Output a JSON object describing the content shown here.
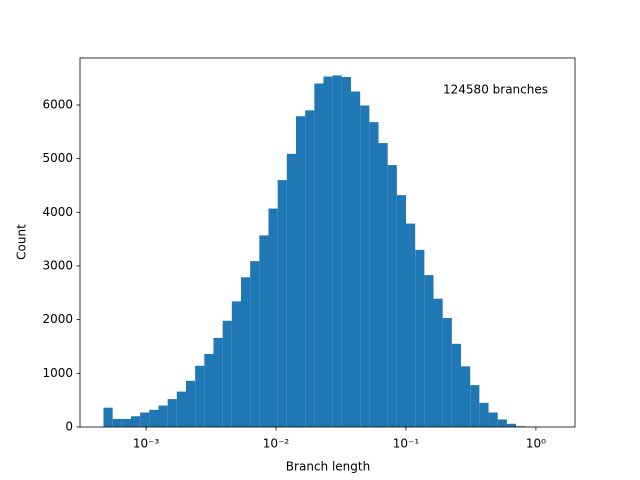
{
  "chart_data": {
    "type": "histogram",
    "xlabel": "Branch length",
    "ylabel": "Count",
    "annotation": "124580 branches",
    "color": "#1f77b4",
    "xscale": "log",
    "bins": [
      0.00047,
      0.000553,
      0.0006505,
      0.0007653,
      0.0009003,
      0.001059,
      0.001246,
      0.001466,
      0.001724,
      0.002028,
      0.002386,
      0.002807,
      0.003302,
      0.003885,
      0.00457,
      0.005376,
      0.006325,
      0.00744,
      0.008753,
      0.0103,
      0.01211,
      0.01425,
      0.01676,
      0.01972,
      0.0232,
      0.02729,
      0.0321,
      0.03777,
      0.04443,
      0.05227,
      0.06149,
      0.07234,
      0.0851,
      0.1001,
      0.1178,
      0.1386,
      0.163,
      0.1918,
      0.2256,
      0.2654,
      0.3122,
      0.3673,
      0.4321,
      0.5083,
      0.598,
      0.7035,
      0.8276,
      0.9736,
      1.145
    ],
    "values": [
      360,
      150,
      150,
      200,
      270,
      320,
      400,
      520,
      660,
      860,
      1140,
      1360,
      1660,
      1980,
      2340,
      2790,
      3090,
      3570,
      4070,
      4600,
      5090,
      5790,
      5900,
      6400,
      6530,
      6550,
      6520,
      6250,
      5990,
      5680,
      5290,
      4880,
      4320,
      3790,
      3300,
      2830,
      2390,
      2030,
      1550,
      1130,
      780,
      450,
      270,
      140,
      60,
      15,
      5,
      0
    ],
    "xlim": [
      0.00031,
      2.0
    ],
    "xticks": [
      {
        "value": 0.001,
        "label": "10⁻³"
      },
      {
        "value": 0.01,
        "label": "10⁻²"
      },
      {
        "value": 0.1,
        "label": "10⁻¹"
      },
      {
        "value": 1,
        "label": "10⁰"
      }
    ],
    "ylim": [
      0,
      6875
    ],
    "yticks": [
      0,
      1000,
      2000,
      3000,
      4000,
      5000,
      6000
    ]
  }
}
